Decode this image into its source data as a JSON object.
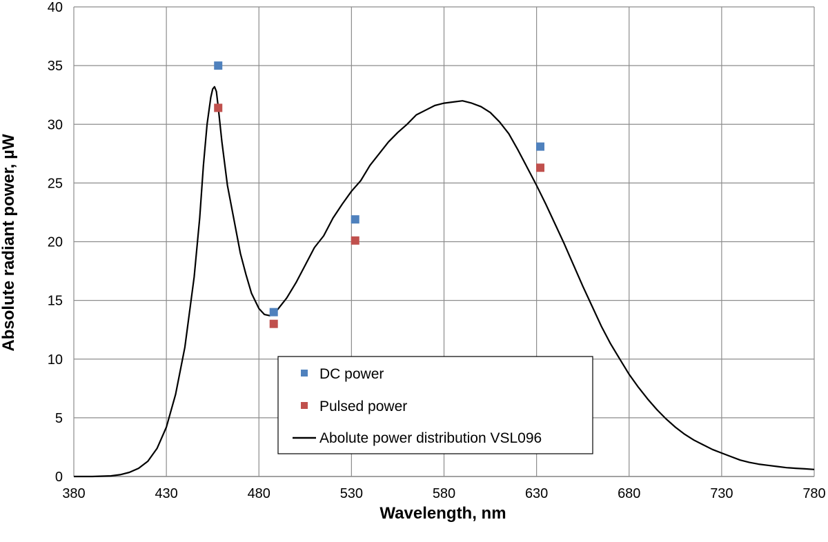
{
  "chart_data": {
    "type": "scatter",
    "title": "",
    "xlabel": "Wavelength, nm",
    "ylabel": "Absolute radiant power, µW",
    "xlim": [
      380,
      780
    ],
    "ylim": [
      0,
      40
    ],
    "x_ticks": [
      "380",
      "430",
      "480",
      "530",
      "580",
      "630",
      "680",
      "730",
      "780"
    ],
    "y_ticks": [
      "0",
      "5",
      "10",
      "15",
      "20",
      "25",
      "30",
      "35",
      "40"
    ],
    "grid": true,
    "legend_position": "lower-center",
    "series": [
      {
        "name": "DC power",
        "kind": "markers",
        "color": "#4f81bd",
        "points": [
          [
            458,
            35.0
          ],
          [
            488,
            14.0
          ],
          [
            532,
            21.9
          ],
          [
            632,
            28.1
          ]
        ]
      },
      {
        "name": "Pulsed power",
        "kind": "markers",
        "color": "#c0504d",
        "points": [
          [
            458,
            31.4
          ],
          [
            488,
            13.0
          ],
          [
            532,
            20.1
          ],
          [
            632,
            26.3
          ]
        ]
      },
      {
        "name": "Abolute power distribution VSL096",
        "kind": "line",
        "color": "#000000",
        "points": [
          [
            380,
            0.0
          ],
          [
            390,
            0.0
          ],
          [
            400,
            0.05
          ],
          [
            405,
            0.15
          ],
          [
            410,
            0.35
          ],
          [
            415,
            0.7
          ],
          [
            420,
            1.3
          ],
          [
            425,
            2.4
          ],
          [
            430,
            4.2
          ],
          [
            435,
            7.0
          ],
          [
            440,
            11.0
          ],
          [
            445,
            17.0
          ],
          [
            448,
            22.0
          ],
          [
            450,
            26.5
          ],
          [
            452,
            30.0
          ],
          [
            454,
            32.3
          ],
          [
            455,
            33.0
          ],
          [
            456,
            33.2
          ],
          [
            457,
            32.8
          ],
          [
            458,
            31.5
          ],
          [
            460,
            28.5
          ],
          [
            463,
            24.8
          ],
          [
            466,
            22.3
          ],
          [
            470,
            19.0
          ],
          [
            473,
            17.2
          ],
          [
            476,
            15.6
          ],
          [
            480,
            14.3
          ],
          [
            483,
            13.8
          ],
          [
            486,
            13.7
          ],
          [
            490,
            14.2
          ],
          [
            495,
            15.2
          ],
          [
            500,
            16.5
          ],
          [
            505,
            18.0
          ],
          [
            510,
            19.5
          ],
          [
            515,
            20.5
          ],
          [
            520,
            22.0
          ],
          [
            525,
            23.2
          ],
          [
            530,
            24.3
          ],
          [
            535,
            25.2
          ],
          [
            540,
            26.5
          ],
          [
            545,
            27.5
          ],
          [
            550,
            28.5
          ],
          [
            555,
            29.3
          ],
          [
            560,
            30.0
          ],
          [
            565,
            30.8
          ],
          [
            570,
            31.2
          ],
          [
            575,
            31.6
          ],
          [
            580,
            31.8
          ],
          [
            585,
            31.9
          ],
          [
            590,
            32.0
          ],
          [
            595,
            31.8
          ],
          [
            600,
            31.5
          ],
          [
            605,
            31.0
          ],
          [
            610,
            30.2
          ],
          [
            615,
            29.2
          ],
          [
            620,
            27.8
          ],
          [
            625,
            26.3
          ],
          [
            630,
            24.8
          ],
          [
            635,
            23.2
          ],
          [
            640,
            21.5
          ],
          [
            645,
            19.8
          ],
          [
            650,
            18.0
          ],
          [
            655,
            16.2
          ],
          [
            660,
            14.5
          ],
          [
            665,
            12.8
          ],
          [
            670,
            11.3
          ],
          [
            675,
            10.0
          ],
          [
            680,
            8.7
          ],
          [
            685,
            7.6
          ],
          [
            690,
            6.6
          ],
          [
            695,
            5.7
          ],
          [
            700,
            4.9
          ],
          [
            705,
            4.2
          ],
          [
            710,
            3.6
          ],
          [
            715,
            3.1
          ],
          [
            720,
            2.7
          ],
          [
            725,
            2.3
          ],
          [
            730,
            2.0
          ],
          [
            735,
            1.7
          ],
          [
            740,
            1.4
          ],
          [
            745,
            1.2
          ],
          [
            750,
            1.05
          ],
          [
            755,
            0.95
          ],
          [
            760,
            0.85
          ],
          [
            765,
            0.75
          ],
          [
            770,
            0.7
          ],
          [
            775,
            0.65
          ],
          [
            780,
            0.6
          ]
        ]
      }
    ]
  }
}
